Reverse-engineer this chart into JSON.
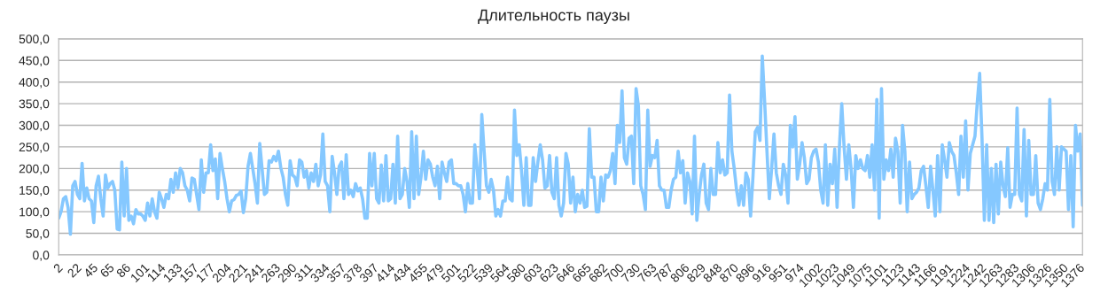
{
  "chart_data": {
    "type": "line",
    "title": "Длительность паузы",
    "categories": [
      "2",
      null,
      null,
      null,
      null,
      null,
      null,
      "22",
      null,
      null,
      null,
      null,
      null,
      null,
      "45",
      null,
      null,
      null,
      null,
      null,
      null,
      "65",
      null,
      null,
      null,
      null,
      null,
      null,
      "86",
      null,
      null,
      null,
      null,
      null,
      null,
      "101",
      null,
      null,
      null,
      null,
      null,
      null,
      "114",
      null,
      null,
      null,
      null,
      null,
      null,
      "133",
      null,
      null,
      null,
      null,
      null,
      null,
      "157",
      null,
      null,
      null,
      null,
      null,
      null,
      "177",
      null,
      null,
      null,
      null,
      null,
      null,
      "204",
      null,
      null,
      null,
      null,
      null,
      null,
      "221",
      null,
      null,
      null,
      null,
      null,
      null,
      "241",
      null,
      null,
      null,
      null,
      null,
      null,
      "263",
      null,
      null,
      null,
      null,
      null,
      null,
      "290",
      null,
      null,
      null,
      null,
      null,
      null,
      "311",
      null,
      null,
      null,
      null,
      null,
      null,
      "334",
      null,
      null,
      null,
      null,
      null,
      null,
      "357",
      null,
      null,
      null,
      null,
      null,
      null,
      "378",
      null,
      null,
      null,
      null,
      null,
      null,
      "397",
      null,
      null,
      null,
      null,
      null,
      null,
      "414",
      null,
      null,
      null,
      null,
      null,
      null,
      "434",
      null,
      null,
      null,
      null,
      null,
      null,
      "455",
      null,
      null,
      null,
      null,
      null,
      null,
      "479",
      null,
      null,
      null,
      null,
      null,
      null,
      "501",
      null,
      null,
      null,
      null,
      null,
      null,
      "522",
      null,
      null,
      null,
      null,
      null,
      null,
      "539",
      null,
      null,
      null,
      null,
      null,
      null,
      "564",
      null,
      null,
      null,
      null,
      null,
      null,
      "580",
      null,
      null,
      null,
      null,
      null,
      null,
      "603",
      null,
      null,
      null,
      null,
      null,
      null,
      "623",
      null,
      null,
      null,
      null,
      null,
      null,
      "646",
      null,
      null,
      null,
      null,
      null,
      null,
      "665",
      null,
      null,
      null,
      null,
      null,
      null,
      "682",
      null,
      null,
      null,
      null,
      null,
      null,
      "700",
      null,
      null,
      null,
      null,
      null,
      null,
      "730",
      null,
      null,
      null,
      null,
      null,
      null,
      "763",
      null,
      null,
      null,
      null,
      null,
      null,
      "787",
      null,
      null,
      null,
      null,
      null,
      null,
      "806",
      null,
      null,
      null,
      null,
      null,
      null,
      "829",
      null,
      null,
      null,
      null,
      null,
      null,
      "848",
      null,
      null,
      null,
      null,
      null,
      null,
      "870",
      null,
      null,
      null,
      null,
      null,
      null,
      "896",
      null,
      null,
      null,
      null,
      null,
      null,
      "916",
      null,
      null,
      null,
      null,
      null,
      null,
      "951",
      null,
      null,
      null,
      null,
      null,
      null,
      "974",
      null,
      null,
      null,
      null,
      null,
      null,
      "1002",
      null,
      null,
      null,
      null,
      null,
      null,
      "1023",
      null,
      null,
      null,
      null,
      null,
      null,
      "1049",
      null,
      null,
      null,
      null,
      null,
      null,
      "1075",
      null,
      null,
      null,
      null,
      null,
      null,
      "1101",
      null,
      null,
      null,
      null,
      null,
      null,
      "1123",
      null,
      null,
      null,
      null,
      null,
      null,
      "1143",
      null,
      null,
      null,
      null,
      null,
      null,
      "1166",
      null,
      null,
      null,
      null,
      null,
      null,
      "1191",
      null,
      null,
      null,
      null,
      null,
      null,
      "1224",
      null,
      null,
      null,
      null,
      null,
      null,
      "1242",
      null,
      null,
      null,
      null,
      null,
      null,
      "1263",
      null,
      null,
      null,
      null,
      null,
      null,
      "1283",
      null,
      null,
      null,
      null,
      null,
      null,
      "1306",
      null,
      null,
      null,
      null,
      null,
      null,
      "1326",
      null,
      null,
      null,
      null,
      null,
      null,
      "1350",
      null,
      null,
      null,
      null,
      null,
      null,
      "1376",
      null,
      null,
      null,
      null
    ],
    "series": [
      {
        "color": "#85c8ff",
        "values": [
          85,
          100,
          130,
          135,
          110,
          48,
          160,
          170,
          140,
          130,
          212,
          125,
          155,
          130,
          125,
          75,
          160,
          182,
          130,
          90,
          185,
          155,
          165,
          170,
          150,
          60,
          58,
          215,
          90,
          200,
          80,
          90,
          72,
          105,
          95,
          95,
          90,
          80,
          120,
          90,
          130,
          100,
          85,
          145,
          130,
          110,
          140,
          130,
          175,
          145,
          190,
          155,
          200,
          190,
          160,
          150,
          125,
          178,
          175,
          140,
          105,
          220,
          145,
          190,
          190,
          255,
          195,
          222,
          130,
          235,
          200,
          170,
          130,
          100,
          125,
          128,
          138,
          140,
          148,
          98,
          130,
          205,
          235,
          200,
          165,
          120,
          258,
          200,
          140,
          145,
          218,
          215,
          228,
          218,
          240,
          202,
          180,
          140,
          115,
          218,
          185,
          180,
          160,
          220,
          215,
          180,
          195,
          155,
          190,
          170,
          210,
          160,
          185,
          280,
          170,
          160,
          100,
          228,
          190,
          140,
          205,
          215,
          130,
          232,
          140,
          150,
          135,
          165,
          148,
          155,
          130,
          85,
          85,
          235,
          160,
          235,
          130,
          120,
          208,
          125,
          230,
          125,
          130,
          210,
          120,
          275,
          130,
          140,
          200,
          170,
          110,
          285,
          130,
          275,
          140,
          180,
          240,
          175,
          220,
          210,
          180,
          160,
          205,
          130,
          215,
          190,
          170,
          215,
          220,
          165,
          165,
          160,
          160,
          140,
          100,
          165,
          120,
          120,
          255,
          200,
          130,
          325,
          240,
          160,
          145,
          175,
          150,
          90,
          105,
          90,
          125,
          125,
          180,
          130,
          125,
          335,
          230,
          255,
          195,
          115,
          225,
          115,
          115,
          225,
          170,
          215,
          255,
          220,
          155,
          160,
          230,
          145,
          130,
          225,
          115,
          90,
          120,
          235,
          210,
          120,
          180,
          100,
          140,
          120,
          150,
          110,
          113,
          292,
          180,
          180,
          100,
          100,
          180,
          125,
          185,
          180,
          195,
          235,
          165,
          300,
          260,
          380,
          225,
          210,
          270,
          275,
          165,
          385,
          345,
          160,
          140,
          105,
          335,
          205,
          230,
          225,
          265,
          160,
          150,
          150,
          110,
          110,
          150,
          175,
          180,
          240,
          190,
          218,
          120,
          190,
          170,
          95,
          275,
          80,
          140,
          185,
          210,
          120,
          105,
          200,
          140,
          140,
          260,
          190,
          220,
          185,
          190,
          370,
          240,
          200,
          150,
          115,
          160,
          115,
          190,
          175,
          90,
          180,
          285,
          295,
          265,
          460,
          355,
          240,
          130,
          200,
          280,
          190,
          160,
          140,
          210,
          185,
          120,
          300,
          250,
          320,
          175,
          210,
          260,
          225,
          165,
          175,
          225,
          240,
          245,
          215,
          150,
          120,
          255,
          115,
          210,
          165,
          245,
          110,
          250,
          350,
          250,
          175,
          255,
          200,
          110,
          230,
          200,
          220,
          200,
          195,
          230,
          180,
          255,
          150,
          360,
          85,
          385,
          175,
          220,
          195,
          245,
          180,
          270,
          240,
          120,
          300,
          240,
          100,
          215,
          130,
          140,
          145,
          155,
          195,
          205,
          160,
          110,
          205,
          150,
          90,
          230,
          100,
          255,
          220,
          180,
          260,
          240,
          230,
          190,
          140,
          275,
          180,
          310,
          150,
          235,
          255,
          275,
          355,
          420,
          270,
          80,
          255,
          80,
          200,
          75,
          210,
          95,
          215,
          160,
          135,
          248,
          110,
          140,
          140,
          340,
          140,
          125,
          290,
          90,
          265,
          140,
          140,
          230,
          120,
          105,
          130,
          165,
          150,
          360,
          170,
          140,
          250,
          150,
          250,
          245,
          240,
          105,
          230,
          65,
          300,
          240,
          280,
          115
        ]
      }
    ],
    "ylim": [
      0,
      500
    ],
    "yticks": [
      {
        "value": 0,
        "label": "0,0"
      },
      {
        "value": 50,
        "label": "50,0"
      },
      {
        "value": 100,
        "label": "100,0"
      },
      {
        "value": 150,
        "label": "150,0"
      },
      {
        "value": 200,
        "label": "200,0"
      },
      {
        "value": 250,
        "label": "250,0"
      },
      {
        "value": 300,
        "label": "300,0"
      },
      {
        "value": 350,
        "label": "350,0"
      },
      {
        "value": 400,
        "label": "400,0"
      },
      {
        "value": 450,
        "label": "450,0"
      },
      {
        "value": 500,
        "label": "500,0"
      }
    ],
    "grid": "y",
    "legend": false,
    "marker": "none",
    "line_style": "solid"
  }
}
